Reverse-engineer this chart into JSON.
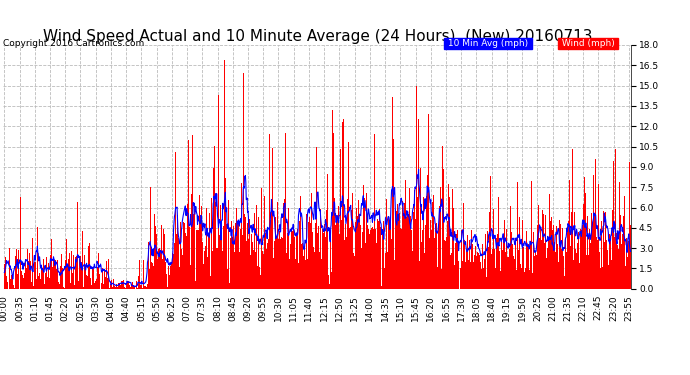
{
  "title": "Wind Speed Actual and 10 Minute Average (24 Hours)  (New) 20160713",
  "copyright": "Copyright 2016 Cartronics.com",
  "legend_labels": [
    "10 Min Avg (mph)",
    "Wind (mph)"
  ],
  "legend_colors": [
    "#0000ff",
    "#ff0000"
  ],
  "ylim": [
    0.0,
    18.0
  ],
  "yticks": [
    0.0,
    1.5,
    3.0,
    4.5,
    6.0,
    7.5,
    9.0,
    10.5,
    12.0,
    13.5,
    15.0,
    16.5,
    18.0
  ],
  "bg_color": "#ffffff",
  "grid_color": "#bbbbbb",
  "bar_color": "#ff0000",
  "line_color": "#0000ff",
  "title_fontsize": 11,
  "copyright_fontsize": 6.5,
  "tick_fontsize": 6.5,
  "n_points": 1440,
  "tick_step_minutes": 35,
  "figsize": [
    6.9,
    3.75
  ],
  "dpi": 100
}
